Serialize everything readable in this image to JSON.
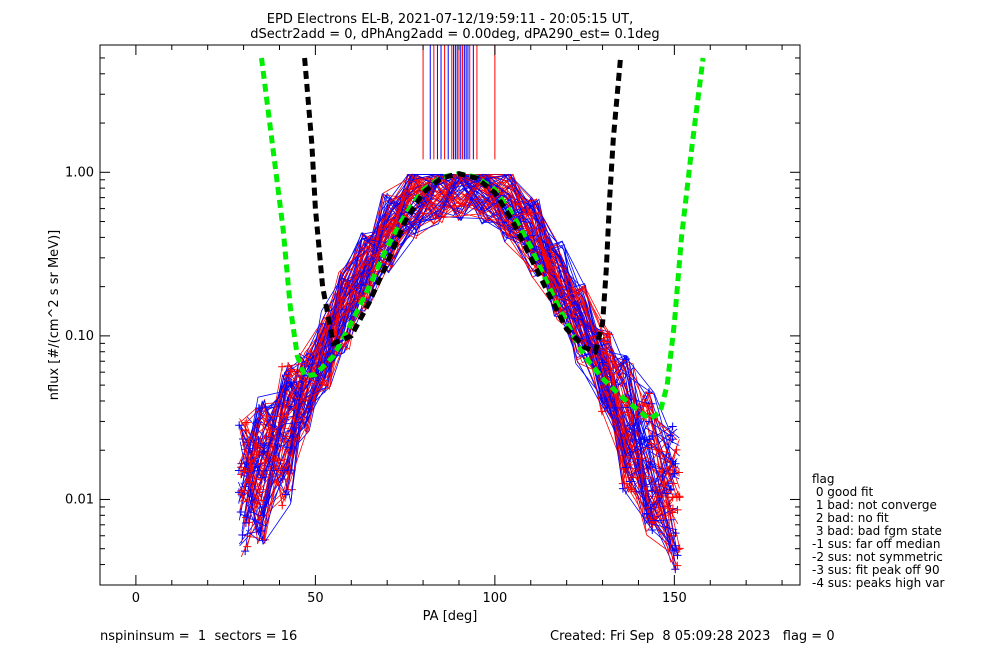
{
  "title_line1": "EPD Electrons EL-B, 2021-07-12/19:59:11 - 20:05:15 UT,",
  "title_line2": "dSectr2add = 0, dPhAng2add = 0.00deg, dPA290_est=   0.1deg",
  "footer_left": "nspininsum =  1  sectors = 16",
  "footer_right": "Created: Fri Sep  8 05:09:28 2023   flag = 0",
  "legend": {
    "title": "flag",
    "items": [
      " 0 good fit",
      " 1 bad: not converge",
      " 2 bad: no fit",
      " 3 bad: bad fgm state",
      "-1 sus: far off median",
      "-2 sus: not symmetric",
      "-3 sus: fit peak off 90",
      "-4 sus: peaks high var"
    ]
  },
  "colors": {
    "red_series": "#ff0000",
    "blue_series": "#0000ff",
    "green_fit": "#00ee00",
    "black_fit": "#000000",
    "axes": "#000000"
  },
  "chart_data": {
    "type": "line",
    "xlabel": "PA [deg]",
    "ylabel": "nflux [#/(cm^2 s sr MeV)]",
    "xlim": [
      -10,
      185
    ],
    "ylim": [
      0.003,
      6.0
    ],
    "ylog": true,
    "x_ticks": [
      0,
      50,
      100,
      150
    ],
    "y_ticks": [
      0.01,
      0.1,
      1.0
    ],
    "y_tick_labels": [
      "0.01",
      "0.10",
      "1.00"
    ],
    "grid": false,
    "legend_position": "right",
    "sector_pa": [
      30,
      35,
      42,
      47,
      53,
      58,
      64,
      70,
      77,
      84,
      90,
      97,
      104,
      111,
      118,
      124,
      131,
      137,
      143,
      150
    ],
    "representative_profile": [
      0.012,
      0.015,
      0.025,
      0.045,
      0.08,
      0.14,
      0.25,
      0.42,
      0.68,
      0.85,
      0.9,
      0.85,
      0.66,
      0.4,
      0.22,
      0.12,
      0.06,
      0.03,
      0.017,
      0.01
    ],
    "series": [
      {
        "name": "green fit",
        "x": [
          35,
          38,
          41,
          43,
          45,
          47,
          50,
          55,
          60,
          65,
          70,
          75,
          80,
          85,
          90,
          95,
          100,
          105,
          110,
          115,
          120,
          125,
          130,
          135,
          140,
          143,
          146,
          148,
          150,
          152,
          155,
          158
        ],
        "y": [
          5.0,
          1.5,
          0.45,
          0.15,
          0.075,
          0.057,
          0.058,
          0.075,
          0.12,
          0.2,
          0.35,
          0.55,
          0.78,
          0.93,
          0.98,
          0.93,
          0.78,
          0.55,
          0.35,
          0.2,
          0.12,
          0.075,
          0.055,
          0.043,
          0.035,
          0.031,
          0.034,
          0.05,
          0.12,
          0.4,
          1.5,
          5.0
        ]
      },
      {
        "name": "black fit",
        "x": [
          47,
          49,
          50,
          52,
          55,
          60,
          65,
          70,
          75,
          80,
          85,
          90,
          95,
          100,
          105,
          110,
          115,
          120,
          125,
          128,
          130,
          131,
          132,
          133,
          135
        ],
        "y": [
          5.0,
          1.5,
          0.6,
          0.2,
          0.09,
          0.1,
          0.16,
          0.28,
          0.5,
          0.75,
          0.92,
          0.98,
          0.92,
          0.75,
          0.5,
          0.3,
          0.18,
          0.11,
          0.085,
          0.08,
          0.12,
          0.25,
          0.7,
          1.6,
          5.0
        ]
      }
    ],
    "vertical_lines": {
      "x_red": [
        80,
        83,
        86,
        88,
        90,
        91,
        93,
        95,
        100
      ],
      "x_blue": [
        82,
        84,
        85,
        87,
        88.5,
        89,
        89.5,
        90.5,
        91.5,
        92,
        92.5,
        94
      ],
      "y_from": 1.2,
      "y_to": 6.0
    }
  }
}
